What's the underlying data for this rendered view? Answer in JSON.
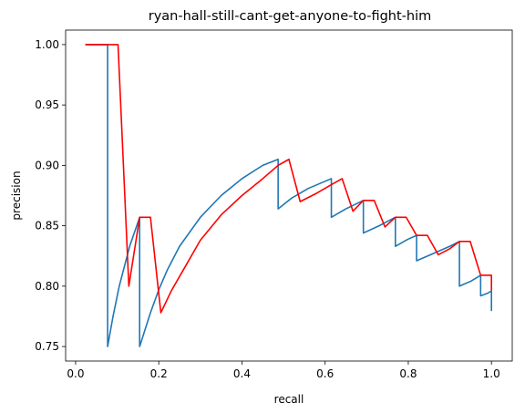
{
  "chart_data": {
    "type": "line",
    "title": "ryan-hall-still-cant-get-anyone-to-fight-him",
    "xlabel": "recall",
    "ylabel": "precision",
    "xlim": [
      -0.024,
      1.05
    ],
    "ylim": [
      0.738,
      1.012
    ],
    "xticks": [
      0.0,
      0.2,
      0.4,
      0.6,
      0.8,
      1.0
    ],
    "xtick_labels": [
      "0.0",
      "0.2",
      "0.4",
      "0.6",
      "0.8",
      "1.0"
    ],
    "yticks": [
      0.75,
      0.8,
      0.85,
      0.9,
      0.95,
      1.0
    ],
    "ytick_labels": [
      "0.75",
      "0.80",
      "0.85",
      "0.90",
      "0.95",
      "1.00"
    ],
    "grid": false,
    "legend": "none",
    "series": [
      {
        "color": "#1f77b4",
        "x": [
          0.025,
          0.077,
          0.077,
          0.09,
          0.105,
          0.13,
          0.154,
          0.154,
          0.18,
          0.2,
          0.22,
          0.25,
          0.3,
          0.35,
          0.4,
          0.45,
          0.487,
          0.487,
          0.52,
          0.56,
          0.615,
          0.615,
          0.65,
          0.692,
          0.692,
          0.73,
          0.769,
          0.769,
          0.8,
          0.82,
          0.82,
          0.86,
          0.9,
          0.923,
          0.923,
          0.95,
          0.974,
          0.974,
          0.99,
          1.0,
          1.0
        ],
        "y": [
          1.0,
          1.0,
          0.75,
          0.775,
          0.8,
          0.833,
          0.857,
          0.75,
          0.778,
          0.797,
          0.813,
          0.833,
          0.857,
          0.875,
          0.889,
          0.9,
          0.905,
          0.864,
          0.873,
          0.881,
          0.889,
          0.857,
          0.864,
          0.871,
          0.844,
          0.85,
          0.857,
          0.833,
          0.839,
          0.842,
          0.821,
          0.827,
          0.833,
          0.837,
          0.8,
          0.804,
          0.809,
          0.792,
          0.794,
          0.796,
          0.78
        ]
      },
      {
        "color": "#ff0000",
        "x": [
          0.025,
          0.102,
          0.128,
          0.154,
          0.18,
          0.205,
          0.23,
          0.26,
          0.3,
          0.35,
          0.4,
          0.45,
          0.487,
          0.513,
          0.54,
          0.58,
          0.615,
          0.641,
          0.667,
          0.692,
          0.718,
          0.744,
          0.769,
          0.795,
          0.82,
          0.846,
          0.872,
          0.9,
          0.923,
          0.949,
          0.974,
          1.0,
          1.0
        ],
        "y": [
          1.0,
          1.0,
          0.8,
          0.857,
          0.857,
          0.778,
          0.796,
          0.814,
          0.838,
          0.859,
          0.875,
          0.889,
          0.9,
          0.905,
          0.87,
          0.877,
          0.884,
          0.889,
          0.862,
          0.871,
          0.871,
          0.849,
          0.857,
          0.857,
          0.842,
          0.842,
          0.826,
          0.831,
          0.837,
          0.837,
          0.809,
          0.809,
          0.797
        ]
      }
    ]
  }
}
